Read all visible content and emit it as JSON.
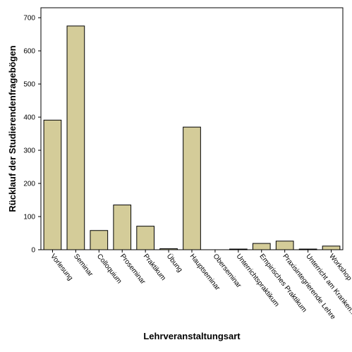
{
  "chart_data": {
    "type": "bar",
    "xlabel": "Lehrveranstaltungsart",
    "ylabel": "Rücklauf der Studierendenfragebögen",
    "ylim": [
      0,
      730
    ],
    "yticks": [
      0,
      100,
      200,
      300,
      400,
      500,
      600,
      700
    ],
    "grid": false,
    "categories": [
      "Vorlesung",
      "Seminar",
      "Colloquium",
      "Proseminar",
      "Praktikum",
      "Übung",
      "Hauptseminar",
      "Oberseminar",
      "Unterrichtspraktikum",
      "Empirisches Praktikum",
      "Praxisintegrierende Lehre",
      "Unterricht am Kranken...",
      "Workshop"
    ],
    "values": [
      391,
      675,
      58,
      135,
      71,
      3,
      370,
      0,
      2,
      19,
      26,
      2,
      11
    ],
    "bar_color": "#d4cc99",
    "bar_stroke": "#000000"
  }
}
